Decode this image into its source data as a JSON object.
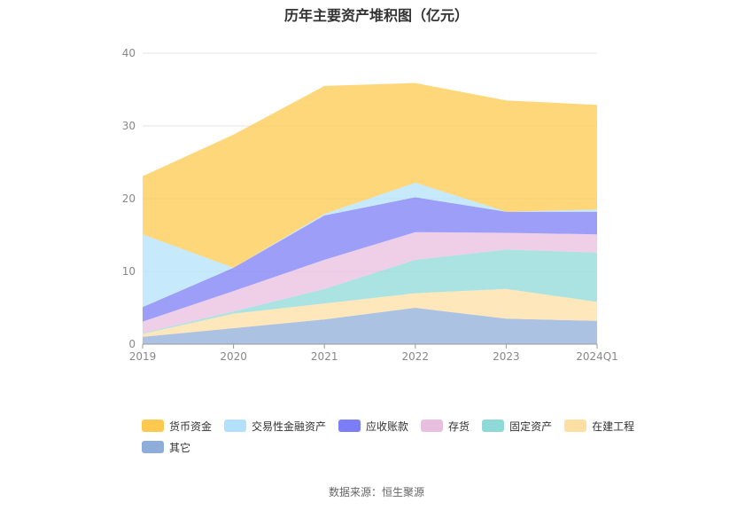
{
  "chart_data": {
    "type": "area",
    "stacked": true,
    "title": "历年主要资产堆积图（亿元）",
    "categories": [
      "2019",
      "2020",
      "2021",
      "2022",
      "2023",
      "2024Q1"
    ],
    "ylim": [
      0,
      40
    ],
    "yticks": [
      0,
      10,
      20,
      30,
      40
    ],
    "grid": true,
    "legend_position": "bottom",
    "series": [
      {
        "name": "其它",
        "color": "#8fadd9",
        "values": [
          1.0,
          2.2,
          3.4,
          5.0,
          3.5,
          3.2
        ]
      },
      {
        "name": "在建工程",
        "color": "#fedfa3",
        "values": [
          0.4,
          2.0,
          2.2,
          2.0,
          4.1,
          2.6
        ]
      },
      {
        "name": "固定资产",
        "color": "#8fdad8",
        "values": [
          0.1,
          0.3,
          2.0,
          4.6,
          5.4,
          6.8
        ]
      },
      {
        "name": "存货",
        "color": "#e8bfdf",
        "values": [
          1.6,
          2.8,
          4.0,
          3.8,
          2.3,
          2.5
        ]
      },
      {
        "name": "应收账款",
        "color": "#7b7ef6",
        "values": [
          2.0,
          3.2,
          6.1,
          4.8,
          2.9,
          3.1
        ]
      },
      {
        "name": "交易性金融资产",
        "color": "#b3e1fb",
        "values": [
          10.0,
          0.0,
          0.2,
          2.0,
          0.0,
          0.3
        ]
      },
      {
        "name": "货币资金",
        "color": "#fdc94f",
        "values": [
          8.0,
          18.3,
          17.6,
          13.7,
          15.3,
          14.4
        ]
      }
    ]
  },
  "legend_order": [
    "货币资金",
    "交易性金融资产",
    "应收账款",
    "存货",
    "固定资产",
    "在建工程",
    "其它"
  ],
  "source": "数据来源：恒生聚源"
}
